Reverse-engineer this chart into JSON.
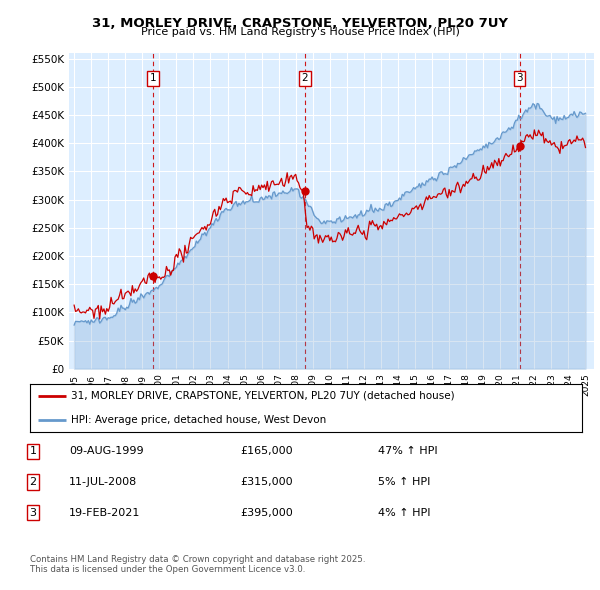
{
  "title": "31, MORLEY DRIVE, CRAPSTONE, YELVERTON, PL20 7UY",
  "subtitle": "Price paid vs. HM Land Registry's House Price Index (HPI)",
  "xlim": [
    1994.7,
    2025.5
  ],
  "ylim": [
    0,
    560000
  ],
  "yticks": [
    0,
    50000,
    100000,
    150000,
    200000,
    250000,
    300000,
    350000,
    400000,
    450000,
    500000,
    550000
  ],
  "ytick_labels": [
    "£0",
    "£50K",
    "£100K",
    "£150K",
    "£200K",
    "£250K",
    "£300K",
    "£350K",
    "£400K",
    "£450K",
    "£500K",
    "£550K"
  ],
  "xticks": [
    1995,
    1996,
    1997,
    1998,
    1999,
    2000,
    2001,
    2002,
    2003,
    2004,
    2005,
    2006,
    2007,
    2008,
    2009,
    2010,
    2011,
    2012,
    2013,
    2014,
    2015,
    2016,
    2017,
    2018,
    2019,
    2020,
    2021,
    2022,
    2023,
    2024,
    2025
  ],
  "sale_dates": [
    1999.608,
    2008.527,
    2021.13
  ],
  "sale_prices": [
    165000,
    315000,
    395000
  ],
  "sale_labels": [
    "1",
    "2",
    "3"
  ],
  "red_line_color": "#cc0000",
  "blue_line_color": "#6699cc",
  "background_color": "#ddeeff",
  "grid_color": "#ffffff",
  "dashed_line_color": "#cc0000",
  "legend_label_red": "31, MORLEY DRIVE, CRAPSTONE, YELVERTON, PL20 7UY (detached house)",
  "legend_label_blue": "HPI: Average price, detached house, West Devon",
  "table_rows": [
    [
      "1",
      "09-AUG-1999",
      "£165,000",
      "47% ↑ HPI"
    ],
    [
      "2",
      "11-JUL-2008",
      "£315,000",
      "5% ↑ HPI"
    ],
    [
      "3",
      "19-FEB-2021",
      "£395,000",
      "4% ↑ HPI"
    ]
  ],
  "footer": "Contains HM Land Registry data © Crown copyright and database right 2025.\nThis data is licensed under the Open Government Licence v3.0."
}
